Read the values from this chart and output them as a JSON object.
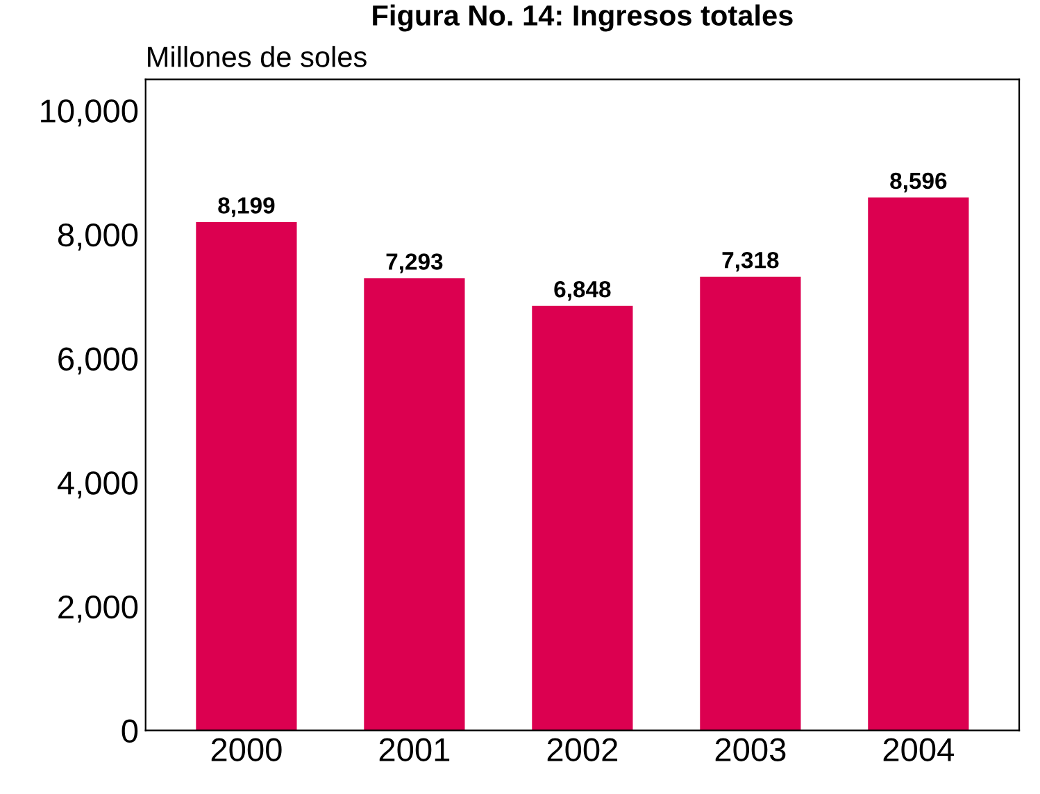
{
  "chart_data": {
    "type": "bar",
    "title": "Figura No. 14: Ingresos totales",
    "ylabel": "Millones de soles",
    "categories": [
      "2000",
      "2001",
      "2002",
      "2003",
      "2004"
    ],
    "values": [
      8199,
      7293,
      6848,
      7318,
      8596
    ],
    "color": "#dc0050",
    "ylim": [
      0,
      10500
    ],
    "yticks": [
      {
        "value": 0,
        "label": "0"
      },
      {
        "value": 2000,
        "label": "2,000"
      },
      {
        "value": 4000,
        "label": "4,000"
      },
      {
        "value": 6000,
        "label": "6,000"
      },
      {
        "value": 8000,
        "label": "8,000"
      },
      {
        "value": 10000,
        "label": "10,000"
      }
    ],
    "value_labels": [
      "8,199",
      "7,293",
      "6,848",
      "7,318",
      "8,596"
    ],
    "grid": false,
    "legend": false
  }
}
